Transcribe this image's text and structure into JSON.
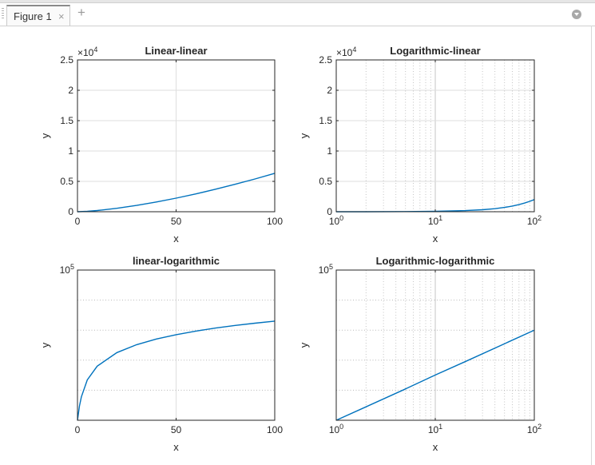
{
  "window": {
    "tab_label": "Figure 1",
    "close_glyph": "×",
    "add_glyph": "+",
    "menu_icon": "chevron-down-icon"
  },
  "chart_data": [
    {
      "type": "line",
      "title": "Linear-linear",
      "xlabel": "x",
      "ylabel": "y",
      "xscale": "linear",
      "yscale": "linear",
      "xlim": [
        0,
        100
      ],
      "ylim": [
        0,
        25000
      ],
      "exponent_label": "×10",
      "exponent_power": "4",
      "xticks": [
        0,
        50,
        100
      ],
      "xtick_labels": [
        "0",
        "50",
        "100"
      ],
      "yticks": [
        0,
        5000,
        10000,
        15000,
        20000,
        25000
      ],
      "ytick_labels": [
        "0",
        "0.5",
        "1",
        "1.5",
        "2",
        "2.5"
      ],
      "grid": true,
      "series": [
        {
          "color": "#0072bd",
          "x": [
            0,
            5,
            10,
            20,
            30,
            40,
            50,
            60,
            70,
            80,
            90,
            100
          ],
          "y": [
            1,
            71,
            200,
            566,
            1040,
            1601,
            2237,
            2940,
            3704,
            4525,
            5400,
            6325
          ]
        }
      ]
    },
    {
      "type": "line",
      "title": "Logarithmic-linear",
      "xlabel": "x",
      "ylabel": "y",
      "xscale": "log",
      "yscale": "linear",
      "xlim": [
        1,
        100
      ],
      "ylim": [
        0,
        25000
      ],
      "exponent_label": "×10",
      "exponent_power": "4",
      "xticks": [
        1,
        10,
        100
      ],
      "xtick_labels": [
        {
          "base": "10",
          "exp": "0"
        },
        {
          "base": "10",
          "exp": "1"
        },
        {
          "base": "10",
          "exp": "2"
        }
      ],
      "yticks": [
        0,
        5000,
        10000,
        15000,
        20000,
        25000
      ],
      "ytick_labels": [
        "0",
        "0.5",
        "1",
        "1.5",
        "2",
        "2.5"
      ],
      "grid": true,
      "series": [
        {
          "color": "#0072bd",
          "x": [
            1,
            2,
            5,
            10,
            20,
            30,
            40,
            50,
            60,
            70,
            80,
            90,
            100
          ],
          "y": [
            1,
            6,
            22,
            63,
            179,
            329,
            506,
            707,
            930,
            1171,
            1431,
            1708,
            2000
          ]
        }
      ]
    },
    {
      "type": "line",
      "title": "linear-logarithmic",
      "xlabel": "x",
      "ylabel": "y",
      "xscale": "linear",
      "yscale": "log",
      "xlim": [
        0,
        100
      ],
      "ylim": [
        1,
        100000
      ],
      "xticks": [
        0,
        50,
        100
      ],
      "xtick_labels": [
        "0",
        "50",
        "100"
      ],
      "ytick_labels": [
        {
          "base": "10",
          "exp": "5"
        }
      ],
      "grid": true,
      "series": [
        {
          "color": "#0072bd",
          "x": [
            0,
            1,
            2,
            5,
            10,
            20,
            30,
            40,
            50,
            60,
            70,
            80,
            90,
            100
          ],
          "y": [
            1,
            3,
            6,
            22,
            63,
            179,
            329,
            506,
            707,
            930,
            1171,
            1431,
            1708,
            2000
          ]
        }
      ]
    },
    {
      "type": "line",
      "title": "Logarithmic-logarithmic",
      "xlabel": "x",
      "ylabel": "y",
      "xscale": "log",
      "yscale": "log",
      "xlim": [
        1,
        100
      ],
      "ylim": [
        1,
        100000
      ],
      "xticks": [
        1,
        10,
        100
      ],
      "xtick_labels": [
        {
          "base": "10",
          "exp": "0"
        },
        {
          "base": "10",
          "exp": "1"
        },
        {
          "base": "10",
          "exp": "2"
        }
      ],
      "ytick_labels": [
        {
          "base": "10",
          "exp": "5"
        }
      ],
      "grid": true,
      "series": [
        {
          "color": "#0072bd",
          "x": [
            1,
            2,
            5,
            10,
            20,
            50,
            100
          ],
          "y": [
            1,
            2.8,
            11,
            32,
            89,
            354,
            1000
          ]
        }
      ]
    }
  ]
}
